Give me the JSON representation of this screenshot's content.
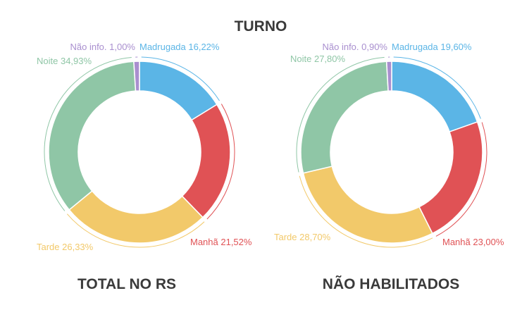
{
  "title": "TURNO",
  "chart_data": [
    {
      "type": "pie",
      "title": "TOTAL NO RS",
      "slices": [
        {
          "name": "Madrugada",
          "value": 16.22,
          "label": "Madrugada 16,22%",
          "color": "#5bb5e6"
        },
        {
          "name": "Manhã",
          "value": 21.52,
          "label": "Manhã 21,52%",
          "color": "#e05255"
        },
        {
          "name": "Tarde",
          "value": 26.33,
          "label": "Tarde 26,33%",
          "color": "#f2c96a"
        },
        {
          "name": "Noite",
          "value": 34.93,
          "label": "Noite 34,93%",
          "color": "#8fc6a6"
        },
        {
          "name": "Não info.",
          "value": 1.0,
          "label": "Não info. 1,00%",
          "color": "#a98fcf"
        }
      ]
    },
    {
      "type": "pie",
      "title": "NÃO HABILITADOS",
      "slices": [
        {
          "name": "Madrugada",
          "value": 19.6,
          "label": "Madrugada 19,60%",
          "color": "#5bb5e6"
        },
        {
          "name": "Manhã",
          "value": 23.0,
          "label": "Manhã 23,00%",
          "color": "#e05255"
        },
        {
          "name": "Tarde",
          "value": 28.7,
          "label": "Tarde 28,70%",
          "color": "#f2c96a"
        },
        {
          "name": "Noite",
          "value": 27.8,
          "label": "Noite 27,80%",
          "color": "#8fc6a6"
        },
        {
          "name": "Não info.",
          "value": 0.9,
          "label": "Não info. 0,90%",
          "color": "#a98fcf"
        }
      ]
    }
  ]
}
